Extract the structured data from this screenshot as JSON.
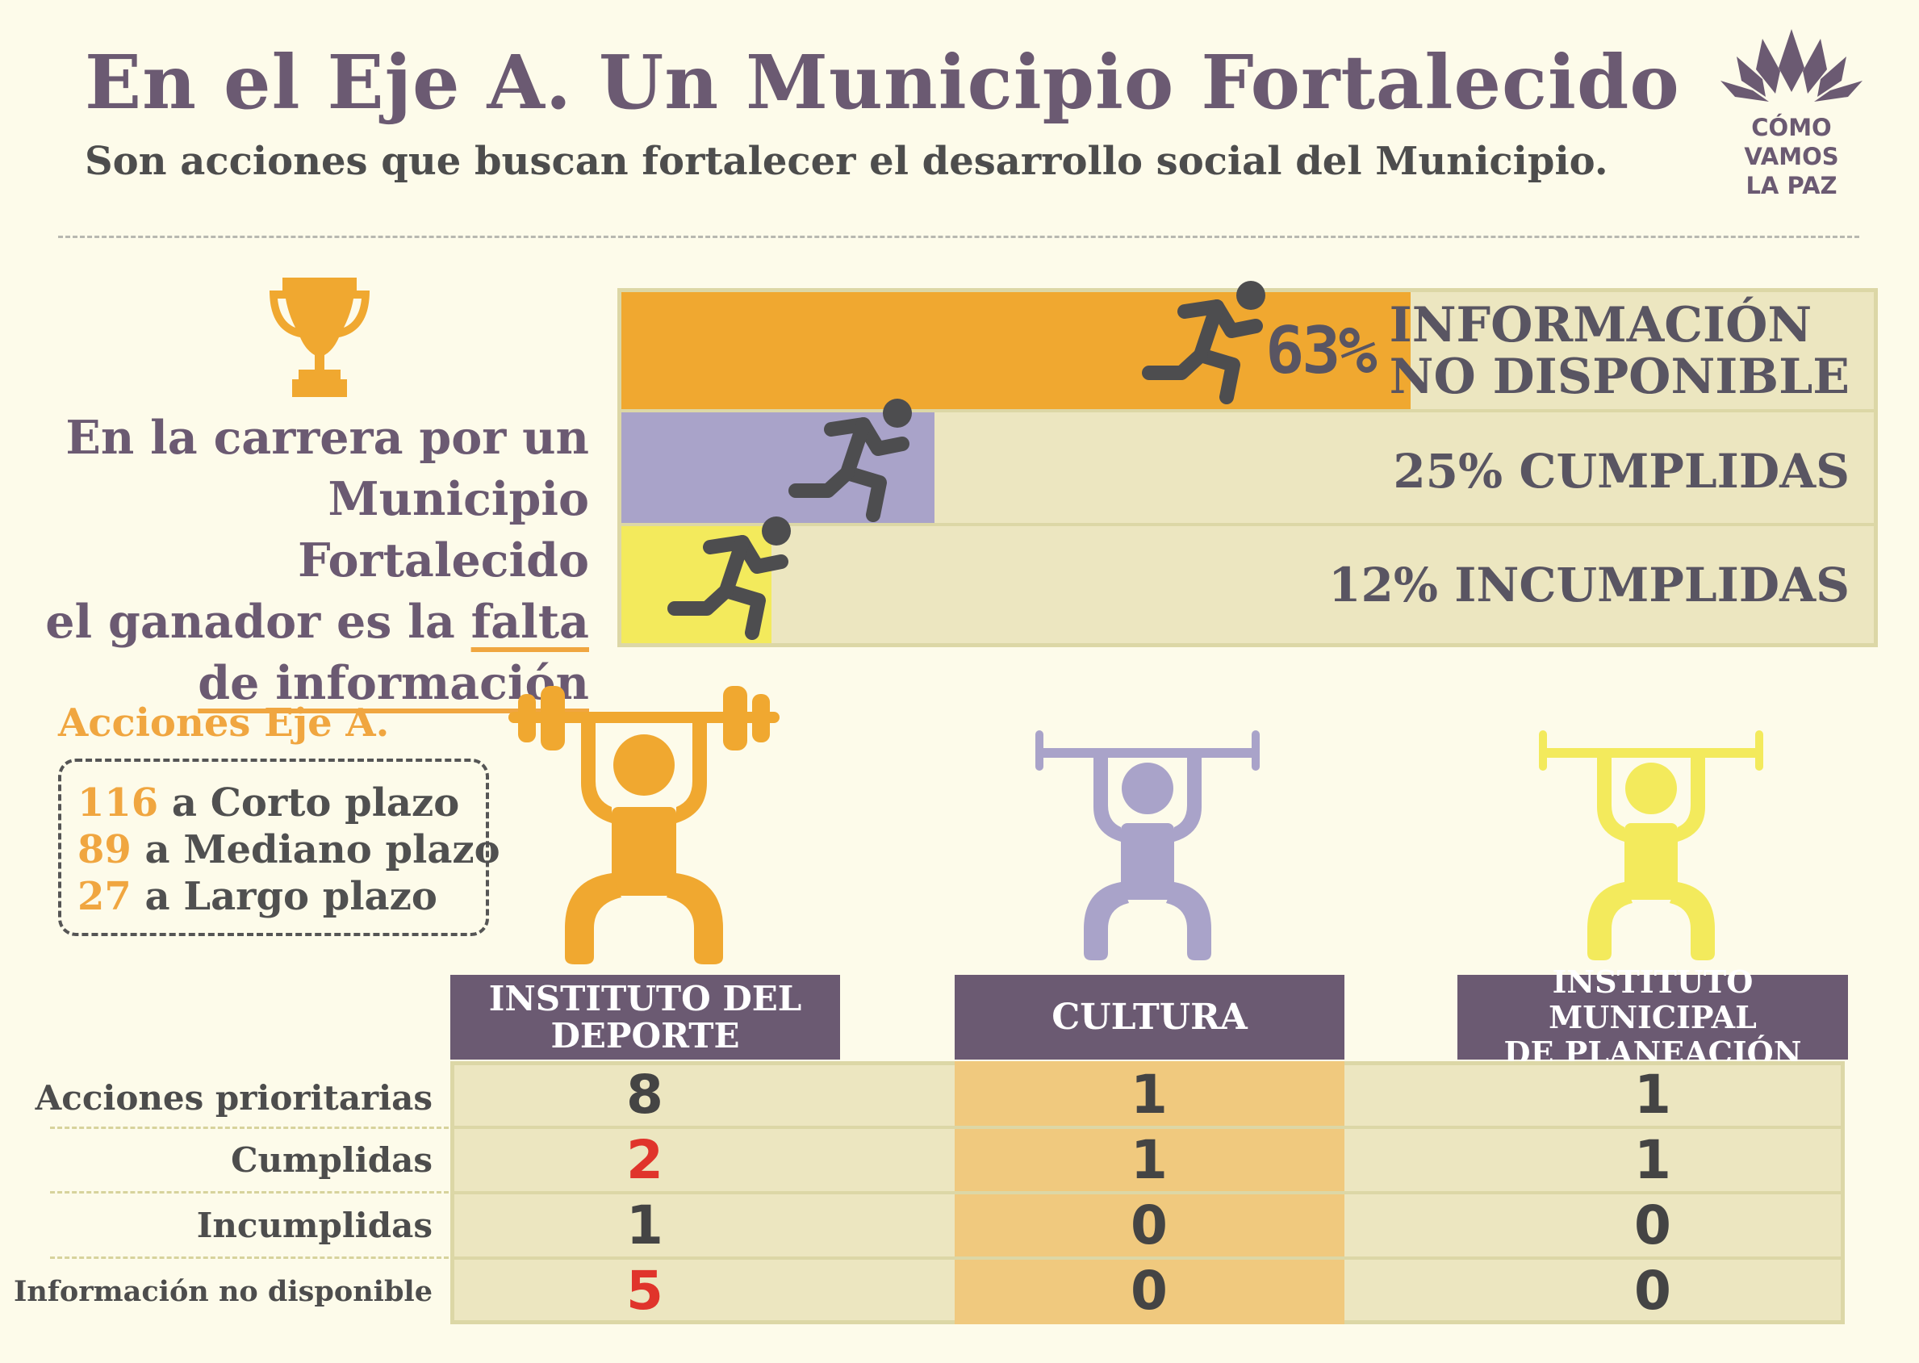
{
  "header": {
    "title": "En el Eje A.  Un Municipio Fortalecido",
    "subtitle": "Son acciones que buscan fortalecer  el desarrollo social del Municipio.",
    "logo_lines": [
      "CÓMO",
      "VAMOS",
      "LA PAZ"
    ]
  },
  "race": {
    "intro_lines": [
      "En la carrera por un",
      "Municipio Fortalecido",
      "el ganador es la"
    ],
    "intro_highlight": [
      "falta",
      "de información"
    ],
    "rows": [
      {
        "pct": "63%",
        "label_line1": "INFORMACIÓN",
        "label_line2": "NO DISPONIBLE",
        "fill": 0.63,
        "color": "#f0a830"
      },
      {
        "label": "25% CUMPLIDAS",
        "fill": 0.25,
        "color": "#a9a3c9"
      },
      {
        "label": "12% INCUMPLIDAS",
        "fill": 0.12,
        "color": "#f3ea5c"
      }
    ]
  },
  "acciones": {
    "title": "Acciones  Eje A.",
    "items": [
      {
        "num": "116",
        "text": " a Corto plazo"
      },
      {
        "num": "89",
        "text": " a Mediano plazo"
      },
      {
        "num": "27",
        "text": " a Largo plazo"
      }
    ]
  },
  "table": {
    "columns": [
      {
        "line1": "INSTITUTO DEL",
        "line2": "DEPORTE",
        "color": "#f0a830"
      },
      {
        "line1": "CULTURA",
        "line2": "",
        "color": "#a9a3c9"
      },
      {
        "line1": "INSTITUTO MUNICIPAL",
        "line2": "DE PLANEACIÓN",
        "color": "#f3ea5c"
      }
    ],
    "rows": [
      {
        "label": "Acciones prioritarias",
        "values": [
          "8",
          "1",
          "1"
        ]
      },
      {
        "label": "Cumplidas",
        "values": [
          "2",
          "1",
          "1"
        ]
      },
      {
        "label": "Incumplidas",
        "values": [
          "1",
          "0",
          "0"
        ]
      },
      {
        "label": "Información no disponible",
        "values": [
          "5",
          "0",
          "0"
        ]
      }
    ]
  },
  "colors": {
    "purple": "#6b5a72",
    "orange": "#f0a830",
    "lavender": "#a9a3c9",
    "yellow": "#f3ea5c",
    "red": "#e0342b",
    "runner": "#4d4d4f"
  }
}
